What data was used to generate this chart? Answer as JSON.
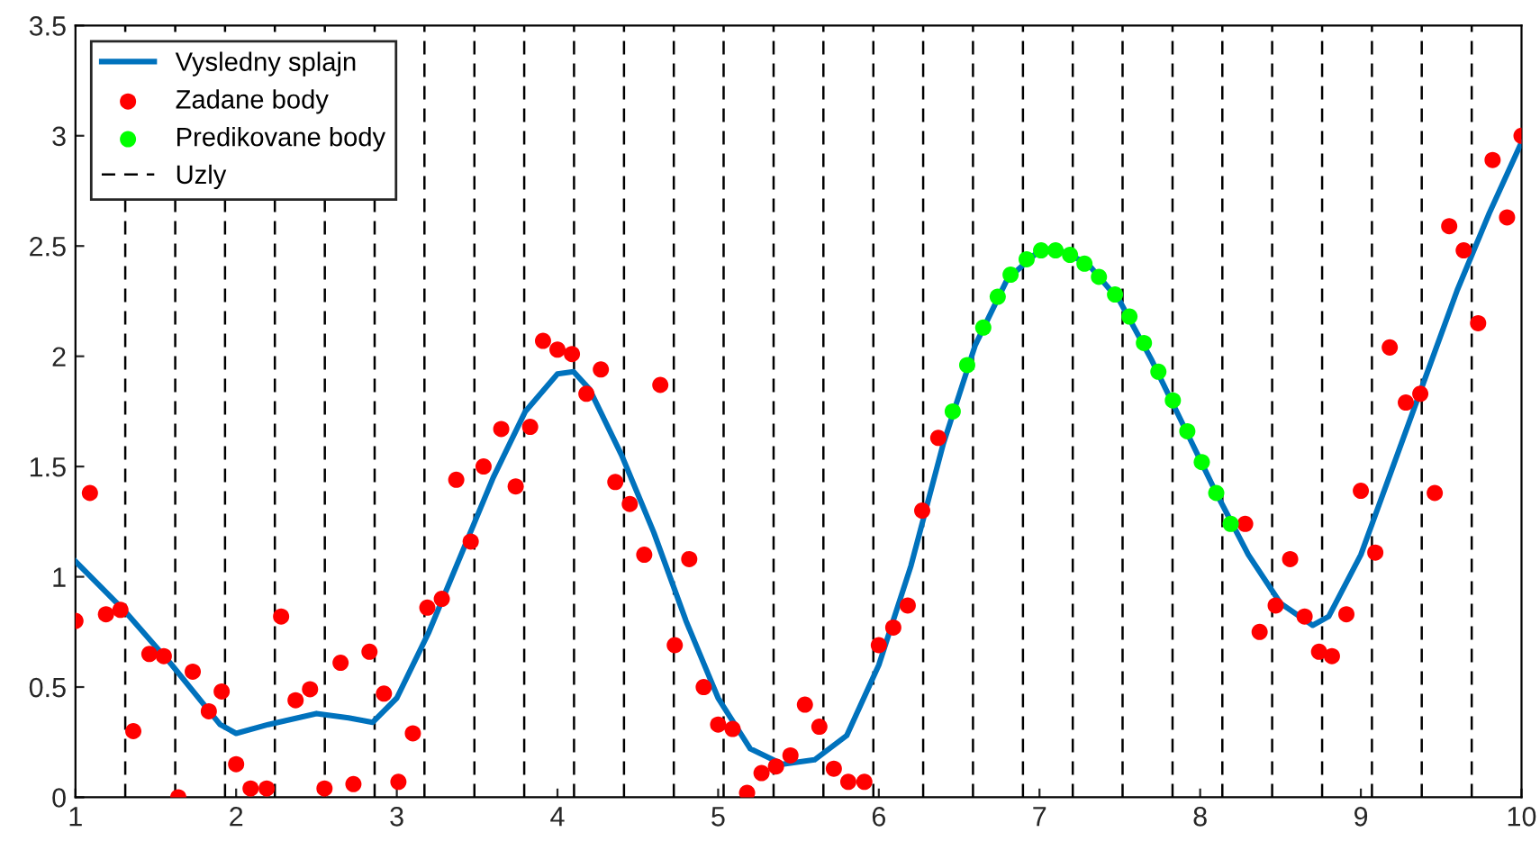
{
  "chart_data": {
    "type": "scatter",
    "xlim": [
      1,
      10
    ],
    "ylim": [
      0,
      3.5
    ],
    "xticks": [
      1,
      2,
      3,
      4,
      5,
      6,
      7,
      8,
      9,
      10
    ],
    "yticks": [
      0,
      0.5,
      1,
      1.5,
      2,
      2.5,
      3,
      3.5
    ],
    "grid": false,
    "legend": "top left",
    "series": [
      {
        "name": "Vysledny splajn",
        "type": "line",
        "color": "#0072bd",
        "marker": "none",
        "line_style": "solid",
        "x": [
          1,
          1.3,
          1.6,
          1.9,
          2.0,
          2.2,
          2.5,
          2.7,
          2.85,
          3.0,
          3.2,
          3.4,
          3.6,
          3.8,
          4.0,
          4.1,
          4.2,
          4.4,
          4.6,
          4.8,
          5.0,
          5.2,
          5.4,
          5.6,
          5.8,
          6.0,
          6.2,
          6.4,
          6.6,
          6.8,
          7.0,
          7.1,
          7.3,
          7.5,
          7.7,
          7.9,
          8.1,
          8.3,
          8.5,
          8.7,
          8.8,
          9.0,
          9.2,
          9.4,
          9.6,
          9.8,
          10
        ],
        "values": [
          1.07,
          0.85,
          0.6,
          0.33,
          0.29,
          0.33,
          0.38,
          0.36,
          0.34,
          0.45,
          0.75,
          1.1,
          1.45,
          1.75,
          1.92,
          1.93,
          1.85,
          1.55,
          1.2,
          0.8,
          0.45,
          0.22,
          0.15,
          0.17,
          0.28,
          0.6,
          1.05,
          1.6,
          2.05,
          2.35,
          2.48,
          2.49,
          2.42,
          2.25,
          1.98,
          1.68,
          1.38,
          1.1,
          0.88,
          0.78,
          0.82,
          1.1,
          1.5,
          1.9,
          2.3,
          2.65,
          2.97
        ]
      },
      {
        "name": "Zadane body",
        "color": "#ff0000",
        "marker": "circle",
        "x": [
          1.0,
          1.09,
          1.19,
          1.28,
          1.36,
          1.46,
          1.55,
          1.64,
          1.73,
          1.83,
          1.91,
          2.0,
          2.09,
          2.19,
          2.28,
          2.37,
          2.46,
          2.55,
          2.65,
          2.73,
          2.83,
          2.92,
          3.01,
          3.1,
          3.19,
          3.28,
          3.37,
          3.46,
          3.54,
          3.65,
          3.74,
          3.83,
          3.91,
          4.0,
          4.09,
          4.18,
          4.27,
          4.36,
          4.45,
          4.54,
          4.64,
          4.73,
          4.82,
          4.91,
          5.0,
          5.09,
          5.18,
          5.27,
          5.36,
          5.45,
          5.54,
          5.63,
          5.72,
          5.81,
          5.91,
          6.0,
          6.09,
          6.18,
          6.27,
          6.37,
          8.28,
          8.37,
          8.47,
          8.56,
          8.65,
          8.74,
          8.82,
          8.91,
          9.0,
          9.09,
          9.18,
          9.28,
          9.37,
          9.46,
          9.55,
          9.64,
          9.73,
          9.82,
          9.91,
          10.0
        ],
        "values": [
          0.8,
          1.38,
          0.83,
          0.85,
          0.3,
          0.65,
          0.64,
          0.0,
          0.57,
          0.39,
          0.48,
          0.15,
          0.04,
          0.04,
          0.82,
          0.44,
          0.49,
          0.04,
          0.61,
          0.06,
          0.66,
          0.47,
          0.07,
          0.29,
          0.86,
          0.9,
          1.44,
          1.16,
          1.5,
          1.67,
          1.41,
          1.68,
          2.07,
          2.03,
          2.01,
          1.83,
          1.94,
          1.43,
          1.33,
          1.1,
          1.87,
          0.69,
          1.08,
          0.5,
          0.33,
          0.31,
          0.02,
          0.11,
          0.14,
          0.19,
          0.42,
          0.32,
          0.13,
          0.07,
          0.07,
          0.69,
          0.77,
          0.87,
          1.3,
          1.63,
          1.24,
          0.75,
          0.87,
          1.08,
          0.82,
          0.66,
          0.64,
          0.83,
          1.39,
          1.11,
          2.04,
          1.79,
          1.83,
          1.38,
          2.59,
          2.48,
          2.15,
          2.89,
          2.63,
          3.0
        ]
      },
      {
        "name": "Predikovane body",
        "color": "#00ff00",
        "marker": "circle",
        "x": [
          6.46,
          6.55,
          6.65,
          6.74,
          6.82,
          6.92,
          7.01,
          7.1,
          7.19,
          7.28,
          7.37,
          7.47,
          7.56,
          7.65,
          7.74,
          7.83,
          7.92,
          8.01,
          8.1,
          8.19
        ],
        "values": [
          1.75,
          1.96,
          2.13,
          2.27,
          2.37,
          2.44,
          2.48,
          2.48,
          2.46,
          2.42,
          2.36,
          2.28,
          2.18,
          2.06,
          1.93,
          1.8,
          1.66,
          1.52,
          1.38,
          1.24
        ]
      }
    ],
    "ref_lines": [
      {
        "axis": "x",
        "value": 1.31,
        "label": "Uzly",
        "color": "#000000",
        "line_style": "dashed"
      },
      {
        "axis": "x",
        "value": 1.621,
        "color": "#000000",
        "line_style": "dashed"
      },
      {
        "axis": "x",
        "value": 1.931,
        "color": "#000000",
        "line_style": "dashed"
      },
      {
        "axis": "x",
        "value": 2.241,
        "color": "#000000",
        "line_style": "dashed"
      },
      {
        "axis": "x",
        "value": 2.552,
        "color": "#000000",
        "line_style": "dashed"
      },
      {
        "axis": "x",
        "value": 2.862,
        "color": "#000000",
        "line_style": "dashed"
      },
      {
        "axis": "x",
        "value": 3.172,
        "color": "#000000",
        "line_style": "dashed"
      },
      {
        "axis": "x",
        "value": 3.483,
        "color": "#000000",
        "line_style": "dashed"
      },
      {
        "axis": "x",
        "value": 3.793,
        "color": "#000000",
        "line_style": "dashed"
      },
      {
        "axis": "x",
        "value": 4.103,
        "color": "#000000",
        "line_style": "dashed"
      },
      {
        "axis": "x",
        "value": 4.414,
        "color": "#000000",
        "line_style": "dashed"
      },
      {
        "axis": "x",
        "value": 4.724,
        "color": "#000000",
        "line_style": "dashed"
      },
      {
        "axis": "x",
        "value": 5.034,
        "color": "#000000",
        "line_style": "dashed"
      },
      {
        "axis": "x",
        "value": 5.345,
        "color": "#000000",
        "line_style": "dashed"
      },
      {
        "axis": "x",
        "value": 5.655,
        "color": "#000000",
        "line_style": "dashed"
      },
      {
        "axis": "x",
        "value": 5.966,
        "color": "#000000",
        "line_style": "dashed"
      },
      {
        "axis": "x",
        "value": 6.276,
        "color": "#000000",
        "line_style": "dashed"
      },
      {
        "axis": "x",
        "value": 6.586,
        "color": "#000000",
        "line_style": "dashed"
      },
      {
        "axis": "x",
        "value": 6.897,
        "color": "#000000",
        "line_style": "dashed"
      },
      {
        "axis": "x",
        "value": 7.207,
        "color": "#000000",
        "line_style": "dashed"
      },
      {
        "axis": "x",
        "value": 7.517,
        "color": "#000000",
        "line_style": "dashed"
      },
      {
        "axis": "x",
        "value": 7.828,
        "color": "#000000",
        "line_style": "dashed"
      },
      {
        "axis": "x",
        "value": 8.138,
        "color": "#000000",
        "line_style": "dashed"
      },
      {
        "axis": "x",
        "value": 8.448,
        "color": "#000000",
        "line_style": "dashed"
      },
      {
        "axis": "x",
        "value": 8.759,
        "color": "#000000",
        "line_style": "dashed"
      },
      {
        "axis": "x",
        "value": 9.069,
        "color": "#000000",
        "line_style": "dashed"
      },
      {
        "axis": "x",
        "value": 9.379,
        "color": "#000000",
        "line_style": "dashed"
      },
      {
        "axis": "x",
        "value": 9.69,
        "color": "#000000",
        "line_style": "dashed"
      }
    ]
  }
}
